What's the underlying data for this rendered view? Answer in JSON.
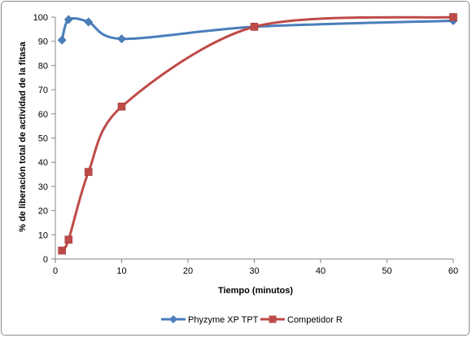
{
  "chart_data": {
    "type": "line",
    "xlabel": "Tiempo  (minutos)",
    "ylabel": "% de liberación  total de actividad  de la fitasa",
    "xlim": [
      0,
      60
    ],
    "ylim": [
      0,
      100
    ],
    "x_ticks": [
      0,
      10,
      20,
      30,
      40,
      50,
      60
    ],
    "y_ticks": [
      0,
      10,
      20,
      30,
      40,
      50,
      60,
      70,
      80,
      90,
      100
    ],
    "grid": false,
    "legend_position": "bottom",
    "series": [
      {
        "name": "Phyzyme XP TPT",
        "color": "#4a7ebb",
        "marker": "diamond",
        "x": [
          1,
          2,
          5,
          10,
          30,
          60
        ],
        "y": [
          90.5,
          99,
          98,
          91,
          96,
          98.5
        ]
      },
      {
        "name": "Competidor R",
        "color": "#be4b48",
        "marker": "square",
        "x": [
          1,
          2,
          5,
          10,
          30,
          60
        ],
        "y": [
          3.5,
          8,
          36,
          63,
          96,
          100
        ]
      }
    ]
  }
}
